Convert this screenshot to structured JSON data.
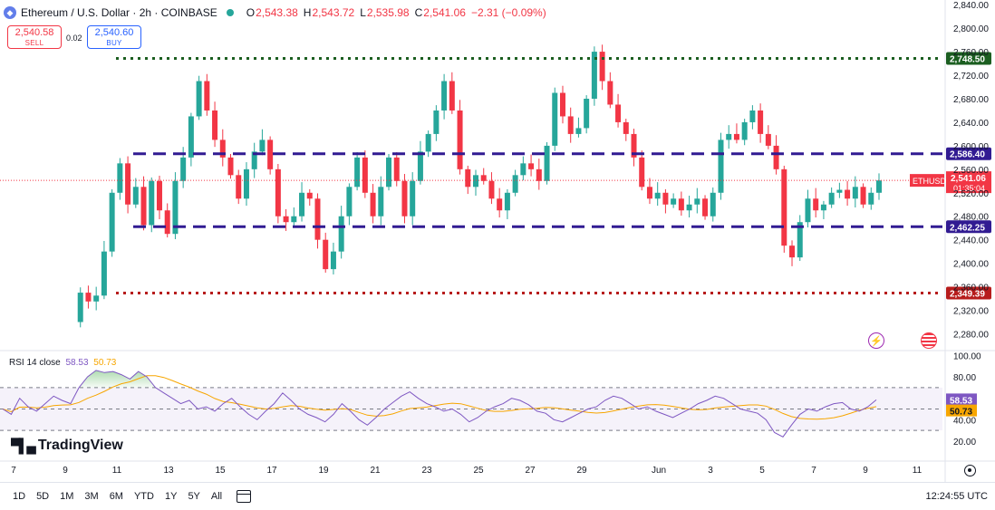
{
  "header": {
    "title": "Ethereum / U.S. Dollar · 2h · COINBASE",
    "open_label": "O",
    "open": "2,543.38",
    "high_label": "H",
    "high": "2,543.72",
    "low_label": "L",
    "low": "2,535.98",
    "close_label": "C",
    "close": "2,541.06",
    "change": "−2.31 (−0.09%)"
  },
  "trade": {
    "sell_price": "2,540.58",
    "sell_label": "SELL",
    "spread": "0.02",
    "buy_price": "2,540.60",
    "buy_label": "BUY"
  },
  "rsi_header": {
    "label": "RSI 14 close",
    "rsi": "58.53",
    "ma": "50.73"
  },
  "brand": "TradingView",
  "periods": [
    "1D",
    "5D",
    "1M",
    "3M",
    "6M",
    "YTD",
    "1Y",
    "5Y",
    "All"
  ],
  "clock": "12:24:55 UTC",
  "colors": {
    "up": "#26a69a",
    "down": "#f23645",
    "green_level": "#1b5e20",
    "purple_level": "#311b92",
    "red_level": "#b71c1c",
    "rsi_line": "#7e57c2",
    "rsi_ma": "#f7a600"
  },
  "icons": [
    "ethereum-logo-icon",
    "market-open-dot-icon",
    "calendar-range-icon",
    "chart-settings-gear-icon",
    "lightning-event-icon",
    "us-flag-event-icon"
  ],
  "chart_data": [
    {
      "type": "candlestick",
      "title": "Ethereum / U.S. Dollar · 2h · COINBASE",
      "symbol": "ETHUSD",
      "interval": "2h",
      "y_ticks": [
        2280,
        2320,
        2360,
        2400,
        2440,
        2480,
        2520,
        2560,
        2600,
        2640,
        2680,
        2720,
        2760,
        2800,
        2840
      ],
      "y_tick_labels": [
        "2,280.00",
        "2,320.00",
        "2,360.00",
        "2,400.00",
        "2,440.00",
        "2,480.00",
        "2,520.00",
        "2,560.00",
        "2,600.00",
        "2,640.00",
        "2,680.00",
        "2,720.00",
        "2,760.00",
        "2,800.00",
        "2,840.00"
      ],
      "ylim": [
        2260,
        2850
      ],
      "x_tick_labels": [
        "7",
        "9",
        "11",
        "13",
        "15",
        "17",
        "19",
        "21",
        "23",
        "25",
        "27",
        "29",
        "Jun",
        "3",
        "5",
        "7",
        "9",
        "11"
      ],
      "last_price": {
        "label": "ETHUSD",
        "value": 2541.06,
        "text": "2,541.06",
        "countdown": "01:35:04"
      },
      "levels": [
        {
          "value": 2748.5,
          "text": "2,748.50",
          "style": "dotted",
          "color": "#1b5e20"
        },
        {
          "value": 2586.4,
          "text": "2,586.40",
          "style": "dashed",
          "color": "#311b92"
        },
        {
          "value": 2462.25,
          "text": "2,462.25",
          "style": "dashed",
          "color": "#311b92"
        },
        {
          "value": 2349.39,
          "text": "2,349.39",
          "style": "dotted",
          "color": "#b71c1c"
        }
      ],
      "price_path": [
        [
          0,
          2300
        ],
        [
          1,
          2350
        ],
        [
          2,
          2335
        ],
        [
          3,
          2345
        ],
        [
          4,
          2420
        ],
        [
          5,
          2520
        ],
        [
          6,
          2570
        ],
        [
          7,
          2500
        ],
        [
          8,
          2530
        ],
        [
          9,
          2465
        ],
        [
          10,
          2540
        ],
        [
          11,
          2490
        ],
        [
          12,
          2450
        ],
        [
          13,
          2540
        ],
        [
          14,
          2580
        ],
        [
          15,
          2650
        ],
        [
          16,
          2710
        ],
        [
          17,
          2660
        ],
        [
          18,
          2610
        ],
        [
          19,
          2580
        ],
        [
          20,
          2550
        ],
        [
          21,
          2510
        ],
        [
          22,
          2560
        ],
        [
          23,
          2590
        ],
        [
          24,
          2610
        ],
        [
          25,
          2560
        ],
        [
          26,
          2480
        ],
        [
          27,
          2470
        ],
        [
          28,
          2480
        ],
        [
          29,
          2520
        ],
        [
          30,
          2510
        ],
        [
          31,
          2440
        ],
        [
          32,
          2390
        ],
        [
          33,
          2420
        ],
        [
          34,
          2480
        ],
        [
          35,
          2530
        ],
        [
          36,
          2580
        ],
        [
          37,
          2520
        ],
        [
          38,
          2480
        ],
        [
          39,
          2530
        ],
        [
          40,
          2580
        ],
        [
          41,
          2540
        ],
        [
          42,
          2480
        ],
        [
          43,
          2540
        ],
        [
          44,
          2590
        ],
        [
          45,
          2620
        ],
        [
          46,
          2660
        ],
        [
          47,
          2710
        ],
        [
          48,
          2660
        ],
        [
          49,
          2560
        ],
        [
          50,
          2530
        ],
        [
          51,
          2550
        ],
        [
          52,
          2540
        ],
        [
          53,
          2510
        ],
        [
          54,
          2490
        ],
        [
          55,
          2520
        ],
        [
          56,
          2550
        ],
        [
          57,
          2570
        ],
        [
          58,
          2560
        ],
        [
          59,
          2540
        ],
        [
          60,
          2600
        ],
        [
          61,
          2690
        ],
        [
          62,
          2650
        ],
        [
          63,
          2620
        ],
        [
          64,
          2630
        ],
        [
          65,
          2680
        ],
        [
          66,
          2760
        ],
        [
          67,
          2710
        ],
        [
          68,
          2670
        ],
        [
          69,
          2640
        ],
        [
          70,
          2620
        ],
        [
          71,
          2580
        ],
        [
          72,
          2530
        ],
        [
          73,
          2510
        ],
        [
          74,
          2520
        ],
        [
          75,
          2500
        ],
        [
          76,
          2510
        ],
        [
          77,
          2490
        ],
        [
          78,
          2500
        ],
        [
          79,
          2510
        ],
        [
          80,
          2480
        ],
        [
          81,
          2520
        ],
        [
          82,
          2610
        ],
        [
          83,
          2620
        ],
        [
          84,
          2610
        ],
        [
          85,
          2640
        ],
        [
          86,
          2660
        ],
        [
          87,
          2620
        ],
        [
          88,
          2600
        ],
        [
          89,
          2560
        ],
        [
          90,
          2430
        ],
        [
          91,
          2410
        ],
        [
          92,
          2470
        ],
        [
          93,
          2510
        ],
        [
          94,
          2490
        ],
        [
          95,
          2500
        ],
        [
          96,
          2520
        ],
        [
          97,
          2525
        ],
        [
          98,
          2510
        ],
        [
          99,
          2530
        ],
        [
          100,
          2500
        ],
        [
          101,
          2520
        ],
        [
          102,
          2541
        ]
      ],
      "price_x_range": [
        0,
        102
      ],
      "date_index_of_ticks": {
        "7": 0,
        "9": 12,
        "11": 24,
        "13": 36,
        "15": 48,
        "17": 60,
        "19": 72,
        "21": 84,
        "23": 96,
        "25": 108,
        "27": 120,
        "29": 132,
        "Jun": 144,
        "3": 156,
        "5": 168,
        "7b": 180,
        "9b": 192,
        "11b": 204
      }
    },
    {
      "type": "line",
      "title": "RSI 14 close",
      "series": [
        {
          "name": "RSI",
          "current": 58.53,
          "values": [
            50,
            45,
            60,
            52,
            48,
            55,
            62,
            58,
            55,
            70,
            80,
            86,
            84,
            85,
            82,
            78,
            85,
            80,
            70,
            65,
            60,
            55,
            58,
            50,
            52,
            48,
            55,
            60,
            52,
            45,
            40,
            48,
            55,
            65,
            58,
            50,
            45,
            42,
            38,
            45,
            55,
            48,
            40,
            35,
            42,
            50,
            56,
            62,
            66,
            60,
            55,
            52,
            48,
            50,
            45,
            38,
            42,
            48,
            52,
            55,
            60,
            58,
            54,
            48,
            46,
            40,
            38,
            42,
            46,
            50,
            52,
            58,
            62,
            60,
            55,
            50,
            52,
            48,
            45,
            42,
            46,
            50,
            55,
            58,
            62,
            60,
            55,
            50,
            48,
            46,
            40,
            28,
            24,
            35,
            45,
            50,
            48,
            52,
            55,
            56,
            50,
            48,
            52,
            58.53
          ]
        },
        {
          "name": "RSI-based MA",
          "current": 50.73
        }
      ],
      "ylim": [
        0,
        100
      ],
      "y_ticks": [
        20,
        40,
        60,
        80,
        100
      ],
      "y_tick_labels": [
        "20.00",
        "40.00",
        "60.00",
        "80.00",
        "100.00"
      ],
      "bands": {
        "upper": 70,
        "middle": 50,
        "lower": 30
      }
    }
  ]
}
